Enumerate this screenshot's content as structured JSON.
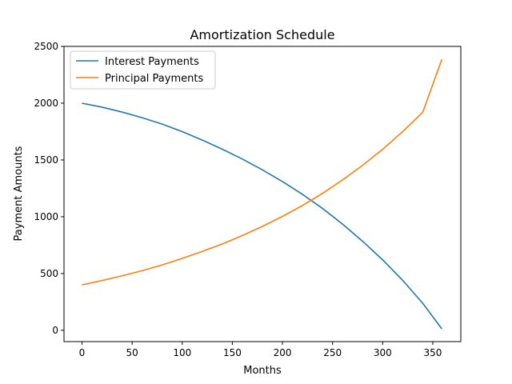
{
  "chart_data": {
    "type": "line",
    "title": "Amortization Schedule",
    "xlabel": "Months",
    "ylabel": "Payment Amounts",
    "xlim": [
      -17.95,
      377.95
    ],
    "ylim": [
      -99.5,
      2500
    ],
    "xticks": [
      0,
      50,
      100,
      150,
      200,
      250,
      300,
      350
    ],
    "yticks": [
      0,
      500,
      1000,
      1500,
      2000,
      2500
    ],
    "grid": false,
    "legend_position": "upper left",
    "x": [
      0,
      20,
      40,
      60,
      80,
      100,
      120,
      140,
      160,
      180,
      200,
      220,
      240,
      260,
      280,
      300,
      320,
      340,
      359
    ],
    "series": [
      {
        "name": "Interest Payments",
        "color": "#1f77b4",
        "values": [
          2000,
          1965,
          1922,
          1872,
          1816,
          1750,
          1675,
          1595,
          1508,
          1413,
          1310,
          1197,
          1073,
          935,
          784,
          620,
          440,
          238,
          13
        ]
      },
      {
        "name": "Principal Payments",
        "color": "#ff7f0e",
        "values": [
          400,
          438,
          480,
          525,
          576,
          633,
          695,
          760,
          835,
          915,
          1003,
          1099,
          1206,
          1324,
          1453,
          1594,
          1750,
          1920,
          2385
        ]
      }
    ]
  }
}
